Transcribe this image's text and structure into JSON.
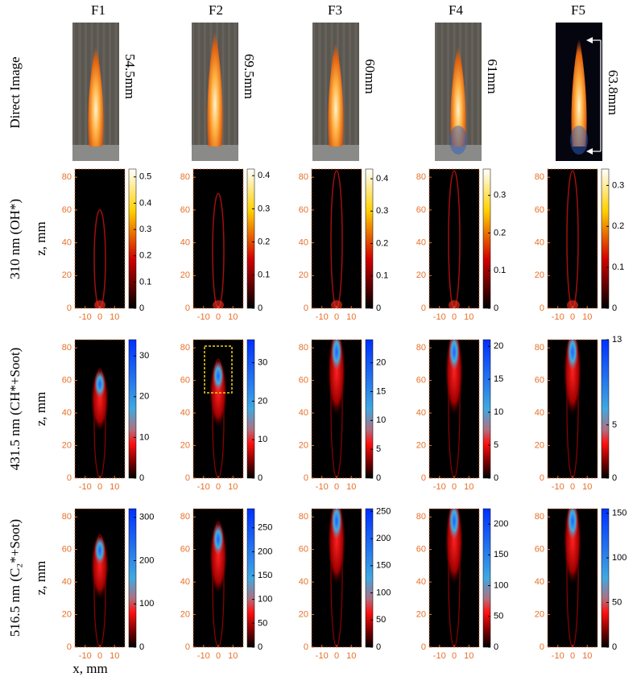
{
  "columns": [
    "F1",
    "F2",
    "F3",
    "F4",
    "F5"
  ],
  "row_labels": [
    "Direct Image",
    "310 nm (OH*)",
    "431.5 nm (CH*+Soot)",
    "516.5 nm (C₂*+Soot)"
  ],
  "heights": [
    "54.5mm",
    "69.5mm",
    "60mm",
    "61mm",
    "63.8mm"
  ],
  "z_label": "z, mm",
  "x_label": "x, mm",
  "z_lim": [
    0,
    85
  ],
  "z_ticks": [
    0,
    20,
    40,
    60,
    80
  ],
  "x_lim": [
    -17,
    17
  ],
  "x_ticks": [
    -10,
    0,
    10
  ],
  "panels": [
    [
      {
        "clim": [
          0,
          0.53
        ],
        "cticks": [
          0,
          0.1,
          0.2,
          0.3,
          0.4,
          0.5
        ]
      },
      {
        "clim": [
          0,
          0.42
        ],
        "cticks": [
          0,
          0.1,
          0.2,
          0.3,
          0.4
        ]
      },
      {
        "clim": [
          0,
          0.43
        ],
        "cticks": [
          0,
          0.1,
          0.2,
          0.3,
          0.4
        ]
      },
      {
        "clim": [
          0,
          0.37
        ],
        "cticks": [
          0,
          0.1,
          0.2,
          0.3
        ]
      },
      {
        "clim": [
          0,
          0.34
        ],
        "cticks": [
          0,
          0.1,
          0.2,
          0.3
        ]
      }
    ],
    [
      {
        "clim": [
          0,
          34
        ],
        "cticks": [
          0,
          10,
          20,
          30
        ]
      },
      {
        "clim": [
          0,
          36
        ],
        "cticks": [
          0,
          10,
          20,
          30
        ]
      },
      {
        "clim": [
          0,
          24
        ],
        "cticks": [
          0,
          5,
          10,
          15,
          20
        ]
      },
      {
        "clim": [
          0,
          21
        ],
        "cticks": [
          0,
          5,
          10,
          15,
          20
        ]
      },
      {
        "clim": [
          0,
          13
        ],
        "cticks": [
          0,
          5,
          13
        ]
      }
    ],
    [
      {
        "clim": [
          0,
          320
        ],
        "cticks": [
          0,
          100,
          200,
          300
        ]
      },
      {
        "clim": [
          0,
          290
        ],
        "cticks": [
          0,
          50,
          100,
          150,
          200,
          250
        ]
      },
      {
        "clim": [
          0,
          255
        ],
        "cticks": [
          0,
          50,
          100,
          150,
          200,
          250
        ]
      },
      {
        "clim": [
          0,
          225
        ],
        "cticks": [
          0,
          50,
          100,
          150,
          200
        ]
      },
      {
        "clim": [
          0,
          155
        ],
        "cticks": [
          0,
          50,
          100,
          150
        ]
      }
    ]
  ]
}
